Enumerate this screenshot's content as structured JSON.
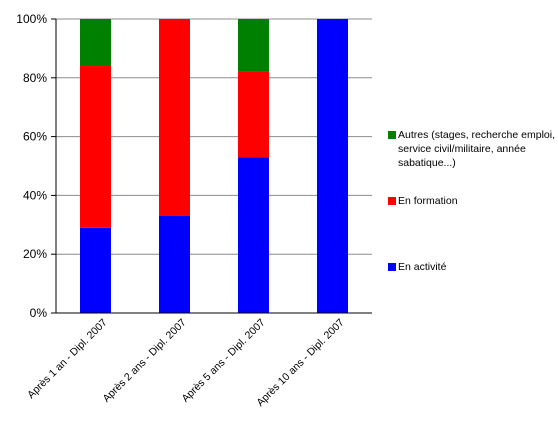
{
  "chart_data": {
    "type": "bar",
    "stacked": true,
    "normalized": true,
    "categories": [
      "Après 1 an - Dipl. 2007",
      "Après 2 ans - Dipl. 2007",
      "Après 5 ans - Dipl. 2007",
      "Après 10 ans - Dipl. 2007"
    ],
    "series": [
      {
        "name": "En activité",
        "color": "#0000ff",
        "values": [
          29,
          33,
          53,
          100
        ]
      },
      {
        "name": "En formation",
        "color": "#ff0000",
        "values": [
          55,
          67,
          29,
          0
        ]
      },
      {
        "name": "Autres (stages, recherche emploi, service civil/militaire, année sabatique...)",
        "color": "#008000",
        "values": [
          16,
          0,
          18,
          0
        ]
      }
    ],
    "yticks": [
      "0%",
      "20%",
      "40%",
      "60%",
      "80%",
      "100%"
    ],
    "ylim": [
      0,
      100
    ],
    "grid": true,
    "legend_position": "right",
    "title": "",
    "xlabel": "",
    "ylabel": ""
  }
}
